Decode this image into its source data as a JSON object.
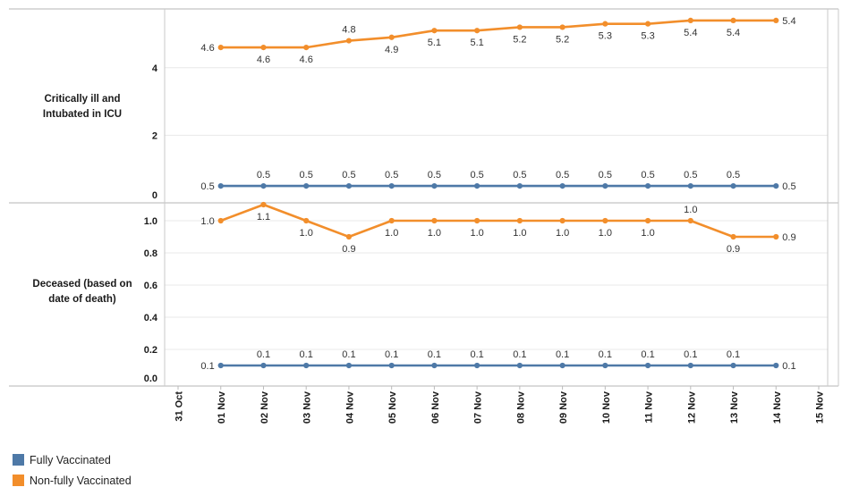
{
  "chart_data": {
    "type": "line",
    "title": "",
    "grid": "horizontal-only",
    "legend_position": "bottom-left",
    "x_categories": [
      "31 Oct",
      "01 Nov",
      "02 Nov",
      "03 Nov",
      "04 Nov",
      "05 Nov",
      "06 Nov",
      "07 Nov",
      "08 Nov",
      "09 Nov",
      "10 Nov",
      "11 Nov",
      "12 Nov",
      "13 Nov",
      "14 Nov",
      "15 Nov"
    ],
    "x_points": [
      "01 Nov",
      "02 Nov",
      "03 Nov",
      "04 Nov",
      "05 Nov",
      "06 Nov",
      "07 Nov",
      "08 Nov",
      "09 Nov",
      "10 Nov",
      "11 Nov",
      "12 Nov",
      "13 Nov",
      "14 Nov"
    ],
    "panels": [
      {
        "row_label": "Critically ill and\nIntubated in ICU",
        "y_ticks": [
          0,
          2,
          4
        ],
        "y_tick_labels": [
          "0",
          "2",
          "4"
        ],
        "ylim": [
          0,
          5.75
        ],
        "series": [
          {
            "name": "Non-fully Vaccinated",
            "color": "#F28E2B",
            "values": [
              4.6,
              4.6,
              4.6,
              4.8,
              4.9,
              5.1,
              5.1,
              5.2,
              5.2,
              5.3,
              5.3,
              5.4,
              5.4,
              5.4
            ],
            "label_positions": [
              "left",
              "below",
              "below",
              "above",
              "below",
              "below",
              "below",
              "below",
              "below",
              "below",
              "below",
              "below",
              "below",
              "right"
            ]
          },
          {
            "name": "Fully Vaccinated",
            "color": "#4E79A7",
            "values": [
              0.5,
              0.5,
              0.5,
              0.5,
              0.5,
              0.5,
              0.5,
              0.5,
              0.5,
              0.5,
              0.5,
              0.5,
              0.5,
              0.5
            ],
            "label_positions": [
              "left",
              "above",
              "above",
              "above",
              "above",
              "above",
              "above",
              "above",
              "above",
              "above",
              "above",
              "above",
              "above",
              "right"
            ]
          }
        ]
      },
      {
        "row_label": "Deceased (based on\ndate of death)",
        "y_ticks": [
          0,
          0.2,
          0.4,
          0.6,
          0.8,
          1.0
        ],
        "y_tick_labels": [
          "0.0",
          "0.2",
          "0.4",
          "0.6",
          "0.8",
          "1.0"
        ],
        "ylim": [
          0,
          1.14
        ],
        "series": [
          {
            "name": "Non-fully Vaccinated",
            "color": "#F28E2B",
            "values": [
              1.0,
              1.1,
              1.0,
              0.9,
              1.0,
              1.0,
              1.0,
              1.0,
              1.0,
              1.0,
              1.0,
              1.0,
              0.9,
              0.9
            ],
            "label_positions": [
              "left",
              "below",
              "below",
              "below",
              "below",
              "below",
              "below",
              "below",
              "below",
              "below",
              "below",
              "above",
              "below",
              "right"
            ]
          },
          {
            "name": "Fully Vaccinated",
            "color": "#4E79A7",
            "values": [
              0.1,
              0.1,
              0.1,
              0.1,
              0.1,
              0.1,
              0.1,
              0.1,
              0.1,
              0.1,
              0.1,
              0.1,
              0.1,
              0.1
            ],
            "label_positions": [
              "left",
              "above",
              "above",
              "above",
              "above",
              "above",
              "above",
              "above",
              "above",
              "above",
              "above",
              "above",
              "above",
              "right"
            ]
          }
        ]
      }
    ],
    "legend": [
      {
        "label": "Fully Vaccinated",
        "color": "#4E79A7"
      },
      {
        "label": "Non-fully Vaccinated",
        "color": "#F28E2B"
      }
    ]
  }
}
